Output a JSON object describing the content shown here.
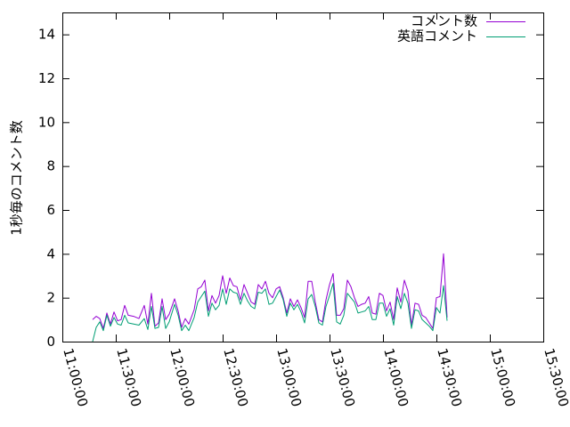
{
  "chart_data": {
    "type": "line",
    "title": "",
    "xlabel": "",
    "ylabel": "1秒毎のコメント数",
    "grid": false,
    "legend_position": "top-right",
    "xlim": [
      "11:00:00",
      "15:30:00"
    ],
    "ylim": [
      0,
      15
    ],
    "x_ticks": [
      "11:00:00",
      "11:30:00",
      "12:00:00",
      "12:30:00",
      "13:00:00",
      "13:30:00",
      "14:00:00",
      "14:30:00",
      "15:00:00",
      "15:30:00"
    ],
    "y_ticks": [
      "0",
      "2",
      "4",
      "6",
      "8",
      "10",
      "12",
      "14"
    ],
    "series": [
      {
        "name": "コメント数",
        "color": "#9400d3",
        "points": [
          [
            "11:17:00",
            1.0
          ],
          [
            "11:19:00",
            1.15
          ],
          [
            "11:21:00",
            1.05
          ],
          [
            "11:23:00",
            0.6
          ],
          [
            "11:25:00",
            1.3
          ],
          [
            "11:27:00",
            0.8
          ],
          [
            "11:29:00",
            1.35
          ],
          [
            "11:31:00",
            0.95
          ],
          [
            "11:33:00",
            1.0
          ],
          [
            "11:35:00",
            1.65
          ],
          [
            "11:37:00",
            1.2
          ],
          [
            "11:40:00",
            1.15
          ],
          [
            "11:43:00",
            1.05
          ],
          [
            "11:46:00",
            1.65
          ],
          [
            "11:48:00",
            0.8
          ],
          [
            "11:50:00",
            2.2
          ],
          [
            "11:52:00",
            0.7
          ],
          [
            "11:54:00",
            0.85
          ],
          [
            "11:56:00",
            1.95
          ],
          [
            "11:58:00",
            1.0
          ],
          [
            "12:00:00",
            1.25
          ],
          [
            "12:03:00",
            1.95
          ],
          [
            "12:05:00",
            1.4
          ],
          [
            "12:07:00",
            0.65
          ],
          [
            "12:09:00",
            1.05
          ],
          [
            "12:11:00",
            0.8
          ],
          [
            "12:14:00",
            1.45
          ],
          [
            "12:16:00",
            2.4
          ],
          [
            "12:18:00",
            2.5
          ],
          [
            "12:20:00",
            2.8
          ],
          [
            "12:22:00",
            1.4
          ],
          [
            "12:24:00",
            2.1
          ],
          [
            "12:26:00",
            1.75
          ],
          [
            "12:28:00",
            2.1
          ],
          [
            "12:30:00",
            3.0
          ],
          [
            "12:32:00",
            2.2
          ],
          [
            "12:34:00",
            2.9
          ],
          [
            "12:36:00",
            2.55
          ],
          [
            "12:38:00",
            2.5
          ],
          [
            "12:40:00",
            1.9
          ],
          [
            "12:42:00",
            2.6
          ],
          [
            "12:44:00",
            2.2
          ],
          [
            "12:46:00",
            1.8
          ],
          [
            "12:48:00",
            1.7
          ],
          [
            "12:50:00",
            2.6
          ],
          [
            "12:52:00",
            2.4
          ],
          [
            "12:54:00",
            2.75
          ],
          [
            "12:56:00",
            2.2
          ],
          [
            "12:58:00",
            2.0
          ],
          [
            "13:00:00",
            2.4
          ],
          [
            "13:02:00",
            2.5
          ],
          [
            "13:04:00",
            2.0
          ],
          [
            "13:06:00",
            1.3
          ],
          [
            "13:08:00",
            1.95
          ],
          [
            "13:10:00",
            1.6
          ],
          [
            "13:12:00",
            1.9
          ],
          [
            "13:14:00",
            1.55
          ],
          [
            "13:16:00",
            1.1
          ],
          [
            "13:18:00",
            2.75
          ],
          [
            "13:20:00",
            2.75
          ],
          [
            "13:22:00",
            1.8
          ],
          [
            "13:24:00",
            1.0
          ],
          [
            "13:26:00",
            0.9
          ],
          [
            "13:28:00",
            1.9
          ],
          [
            "13:30:00",
            2.6
          ],
          [
            "13:32:00",
            3.1
          ],
          [
            "13:34:00",
            1.2
          ],
          [
            "13:36:00",
            1.2
          ],
          [
            "13:38:00",
            1.5
          ],
          [
            "13:40:00",
            2.8
          ],
          [
            "13:42:00",
            2.5
          ],
          [
            "13:44:00",
            2.0
          ],
          [
            "13:46:00",
            1.6
          ],
          [
            "13:48:00",
            1.7
          ],
          [
            "13:50:00",
            1.75
          ],
          [
            "13:52:00",
            2.05
          ],
          [
            "13:54:00",
            1.3
          ],
          [
            "13:56:00",
            1.25
          ],
          [
            "13:58:00",
            2.2
          ],
          [
            "14:00:00",
            2.1
          ],
          [
            "14:02:00",
            1.4
          ],
          [
            "14:04:00",
            1.8
          ],
          [
            "14:06:00",
            1.0
          ],
          [
            "14:08:00",
            2.45
          ],
          [
            "14:10:00",
            1.8
          ],
          [
            "14:12:00",
            2.8
          ],
          [
            "14:14:00",
            2.3
          ],
          [
            "14:16:00",
            0.75
          ],
          [
            "14:18:00",
            1.75
          ],
          [
            "14:20:00",
            1.7
          ],
          [
            "14:22:00",
            1.2
          ],
          [
            "14:24:00",
            1.1
          ],
          [
            "14:26:00",
            0.85
          ],
          [
            "14:28:00",
            0.6
          ],
          [
            "14:30:00",
            2.0
          ],
          [
            "14:32:00",
            2.05
          ],
          [
            "14:34:00",
            4.0
          ],
          [
            "14:36:00",
            1.1
          ]
        ]
      },
      {
        "name": "英語コメント",
        "color": "#009e73",
        "points": [
          [
            "11:17:00",
            0.0
          ],
          [
            "11:19:00",
            0.65
          ],
          [
            "11:21:00",
            0.9
          ],
          [
            "11:23:00",
            0.5
          ],
          [
            "11:25:00",
            1.2
          ],
          [
            "11:27:00",
            0.7
          ],
          [
            "11:29:00",
            1.1
          ],
          [
            "11:31:00",
            0.8
          ],
          [
            "11:33:00",
            0.75
          ],
          [
            "11:35:00",
            1.2
          ],
          [
            "11:37:00",
            0.85
          ],
          [
            "11:40:00",
            0.8
          ],
          [
            "11:43:00",
            0.75
          ],
          [
            "11:46:00",
            1.05
          ],
          [
            "11:48:00",
            0.55
          ],
          [
            "11:50:00",
            1.6
          ],
          [
            "11:52:00",
            0.6
          ],
          [
            "11:54:00",
            0.65
          ],
          [
            "11:56:00",
            1.6
          ],
          [
            "11:58:00",
            0.6
          ],
          [
            "12:00:00",
            0.9
          ],
          [
            "12:03:00",
            1.7
          ],
          [
            "12:05:00",
            1.2
          ],
          [
            "12:07:00",
            0.5
          ],
          [
            "12:09:00",
            0.75
          ],
          [
            "12:11:00",
            0.5
          ],
          [
            "12:14:00",
            1.1
          ],
          [
            "12:16:00",
            1.8
          ],
          [
            "12:18:00",
            2.05
          ],
          [
            "12:20:00",
            2.3
          ],
          [
            "12:22:00",
            1.15
          ],
          [
            "12:24:00",
            1.75
          ],
          [
            "12:26:00",
            1.45
          ],
          [
            "12:28:00",
            1.65
          ],
          [
            "12:30:00",
            2.4
          ],
          [
            "12:32:00",
            1.7
          ],
          [
            "12:34:00",
            2.4
          ],
          [
            "12:36:00",
            2.25
          ],
          [
            "12:38:00",
            2.2
          ],
          [
            "12:40:00",
            1.7
          ],
          [
            "12:42:00",
            2.2
          ],
          [
            "12:44:00",
            1.85
          ],
          [
            "12:46:00",
            1.6
          ],
          [
            "12:48:00",
            1.5
          ],
          [
            "12:50:00",
            2.25
          ],
          [
            "12:52:00",
            2.2
          ],
          [
            "12:54:00",
            2.4
          ],
          [
            "12:56:00",
            1.7
          ],
          [
            "12:58:00",
            1.75
          ],
          [
            "13:00:00",
            2.05
          ],
          [
            "13:02:00",
            2.35
          ],
          [
            "13:04:00",
            1.9
          ],
          [
            "13:06:00",
            1.15
          ],
          [
            "13:08:00",
            1.75
          ],
          [
            "13:10:00",
            1.45
          ],
          [
            "13:12:00",
            1.7
          ],
          [
            "13:14:00",
            1.35
          ],
          [
            "13:16:00",
            0.85
          ],
          [
            "13:18:00",
            1.95
          ],
          [
            "13:20:00",
            2.15
          ],
          [
            "13:22:00",
            1.6
          ],
          [
            "13:24:00",
            0.85
          ],
          [
            "13:26:00",
            0.75
          ],
          [
            "13:28:00",
            1.6
          ],
          [
            "13:30:00",
            2.1
          ],
          [
            "13:32:00",
            2.65
          ],
          [
            "13:34:00",
            0.9
          ],
          [
            "13:36:00",
            0.8
          ],
          [
            "13:38:00",
            1.2
          ],
          [
            "13:40:00",
            2.2
          ],
          [
            "13:42:00",
            2.0
          ],
          [
            "13:44:00",
            1.8
          ],
          [
            "13:46:00",
            1.3
          ],
          [
            "13:48:00",
            1.35
          ],
          [
            "13:50:00",
            1.4
          ],
          [
            "13:52:00",
            1.6
          ],
          [
            "13:54:00",
            1.0
          ],
          [
            "13:56:00",
            1.0
          ],
          [
            "13:58:00",
            1.75
          ],
          [
            "14:00:00",
            1.75
          ],
          [
            "14:02:00",
            1.15
          ],
          [
            "14:04:00",
            1.5
          ],
          [
            "14:06:00",
            0.75
          ],
          [
            "14:08:00",
            2.05
          ],
          [
            "14:10:00",
            1.5
          ],
          [
            "14:12:00",
            2.2
          ],
          [
            "14:14:00",
            1.75
          ],
          [
            "14:16:00",
            0.6
          ],
          [
            "14:18:00",
            1.45
          ],
          [
            "14:20:00",
            1.4
          ],
          [
            "14:22:00",
            1.0
          ],
          [
            "14:24:00",
            0.85
          ],
          [
            "14:26:00",
            0.7
          ],
          [
            "14:28:00",
            0.5
          ],
          [
            "14:30:00",
            1.55
          ],
          [
            "14:32:00",
            1.3
          ],
          [
            "14:34:00",
            2.55
          ],
          [
            "14:36:00",
            0.95
          ]
        ]
      }
    ]
  }
}
